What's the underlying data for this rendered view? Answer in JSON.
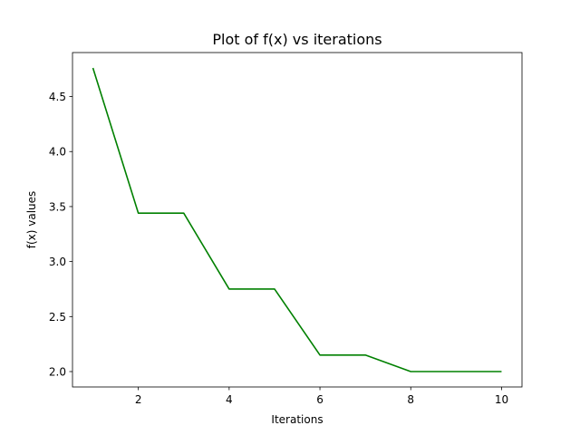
{
  "chart_data": {
    "type": "line",
    "title": "Plot of f(x) vs iterations",
    "xlabel": "Iterations",
    "ylabel": "f(x) values",
    "x": [
      1,
      2,
      3,
      4,
      5,
      6,
      7,
      8,
      9,
      10
    ],
    "series": [
      {
        "values": [
          4.76,
          3.44,
          3.44,
          2.75,
          2.75,
          2.15,
          2.15,
          2.0,
          2.0,
          2.0
        ],
        "color": "#008000"
      }
    ],
    "xlim": [
      0.55,
      10.45
    ],
    "ylim": [
      1.86,
      4.9
    ],
    "xticks": [
      2,
      4,
      6,
      8,
      10
    ],
    "xtick_labels": [
      "2",
      "4",
      "6",
      "8",
      "10"
    ],
    "yticks": [
      2.0,
      2.5,
      3.0,
      3.5,
      4.0,
      4.5
    ],
    "ytick_labels": [
      "2.0",
      "2.5",
      "3.0",
      "3.5",
      "4.0",
      "4.5"
    ],
    "grid": false,
    "legend": "none"
  }
}
